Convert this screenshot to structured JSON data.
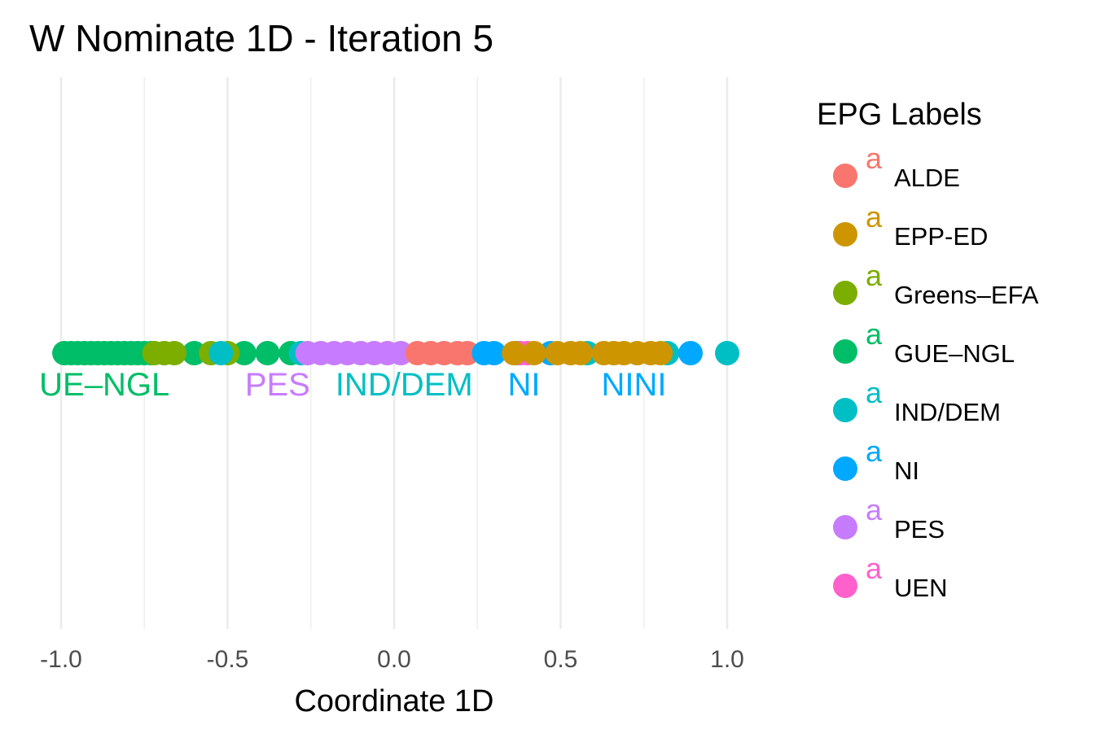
{
  "chart_data": {
    "type": "scatter",
    "title": "W Nominate 1D - Iteration 5",
    "xlabel": "Coordinate 1D",
    "ylabel": "",
    "xlim": [
      -1.05,
      1.05
    ],
    "x_ticks": [
      -1.0,
      -0.5,
      0.0,
      0.5,
      1.0
    ],
    "x_tick_labels": [
      "-1.0",
      "-0.5",
      "0.0",
      "0.5",
      "1.0"
    ],
    "grid": true,
    "legend": {
      "title": "EPG Labels",
      "position": "right",
      "key_glyph": "a",
      "entries": [
        {
          "label": "ALDE",
          "color": "#F8766D"
        },
        {
          "label": "EPP-ED",
          "color": "#CD9600"
        },
        {
          "label": "Greens–EFA",
          "color": "#7CAE00"
        },
        {
          "label": "GUE–NGL",
          "color": "#00BE67"
        },
        {
          "label": "IND/DEM",
          "color": "#00BFC4"
        },
        {
          "label": "NI",
          "color": "#00A9FF"
        },
        {
          "label": "PES",
          "color": "#C77CFF"
        },
        {
          "label": "UEN",
          "color": "#FF61CC"
        }
      ]
    },
    "series": [
      {
        "name": "GUE–NGL",
        "color": "#00BE67",
        "x": [
          -0.99,
          -0.97,
          -0.95,
          -0.93,
          -0.91,
          -0.89,
          -0.87,
          -0.85,
          -0.83,
          -0.81,
          -0.79,
          -0.77,
          -0.75,
          -0.73,
          -0.6,
          -0.45,
          -0.38,
          -0.31
        ]
      },
      {
        "name": "Greens–EFA",
        "color": "#7CAE00",
        "x": [
          -0.72,
          -0.69,
          -0.66,
          -0.55,
          -0.5
        ]
      },
      {
        "name": "IND/DEM",
        "color": "#00BFC4",
        "x": [
          -0.52,
          -0.28,
          0.58,
          0.82,
          1.0
        ]
      },
      {
        "name": "PES",
        "color": "#C77CFF",
        "x": [
          -0.26,
          -0.22,
          -0.18,
          -0.14,
          -0.1,
          -0.06,
          -0.02,
          0.02
        ]
      },
      {
        "name": "ALDE",
        "color": "#F8766D",
        "x": [
          0.07,
          0.11,
          0.15,
          0.19,
          0.22
        ]
      },
      {
        "name": "NI",
        "color": "#00A9FF",
        "x": [
          0.27,
          0.3,
          0.37,
          0.47,
          0.89
        ]
      },
      {
        "name": "UEN",
        "color": "#FF61CC",
        "x": [
          0.38,
          0.4
        ]
      },
      {
        "name": "EPP-ED",
        "color": "#CD9600",
        "x": [
          0.36,
          0.42,
          0.49,
          0.53,
          0.56,
          0.63,
          0.66,
          0.69,
          0.73,
          0.77,
          0.8
        ]
      }
    ],
    "group_labels": [
      {
        "text": "UE–NGL",
        "x": -0.87,
        "color": "#00BE67"
      },
      {
        "text": "PES",
        "x": -0.35,
        "color": "#C77CFF"
      },
      {
        "text": "IND/DEM",
        "x": 0.03,
        "color": "#00BFC4"
      },
      {
        "text": "NI",
        "x": 0.39,
        "color": "#00A9FF"
      },
      {
        "text": "NINI",
        "x": 0.72,
        "color": "#00A9FF"
      }
    ]
  }
}
